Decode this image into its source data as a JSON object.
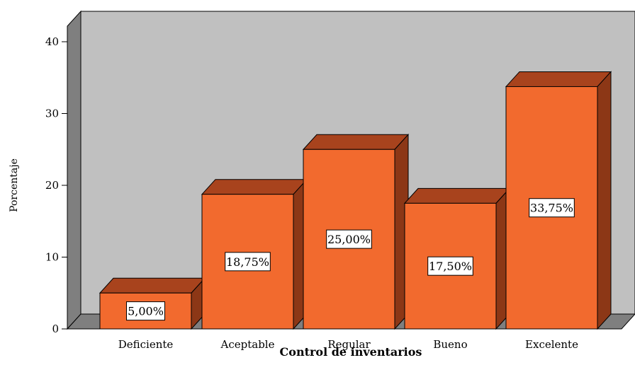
{
  "chart_data": {
    "type": "bar",
    "categories": [
      "Deficiente",
      "Aceptable",
      "Regular",
      "Bueno",
      "Excelente"
    ],
    "values": [
      5.0,
      18.75,
      25.0,
      17.5,
      33.75
    ],
    "data_labels": [
      "5,00%",
      "18,75%",
      "25,00%",
      "17,50%",
      "33,75%"
    ],
    "xlabel": "Control de inventarios",
    "ylabel": "Porcentaje",
    "ylim": [
      0,
      40
    ],
    "yticks": [
      "0",
      "10",
      "20",
      "30",
      "40"
    ],
    "grid": false,
    "style": "3d",
    "colors": {
      "bar_front": "#f26a2e",
      "bar_top": "#a8431d",
      "bar_side": "#8c3716",
      "plot_back": "#c0c0c0",
      "plot_left_wall": "#7f7f7f",
      "plot_floor": "#7f7f7f"
    }
  }
}
